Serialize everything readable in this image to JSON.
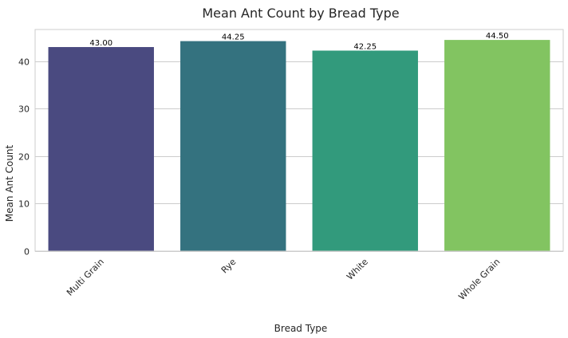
{
  "chart_data": {
    "type": "bar",
    "title": "Mean Ant Count by Bread Type",
    "xlabel": "Bread Type",
    "ylabel": "Mean Ant Count",
    "categories": [
      "Multi Grain",
      "Rye",
      "White",
      "Whole Grain"
    ],
    "values": [
      43.0,
      44.25,
      42.25,
      44.5
    ],
    "value_labels": [
      "43.00",
      "44.25",
      "42.25",
      "44.50"
    ],
    "yticks": [
      0,
      10,
      20,
      30,
      40
    ],
    "ylim": [
      0,
      46.7
    ],
    "grid": true,
    "legend": "none",
    "colors": [
      "#4a4a80",
      "#34727f",
      "#329a7c",
      "#82c461"
    ]
  }
}
